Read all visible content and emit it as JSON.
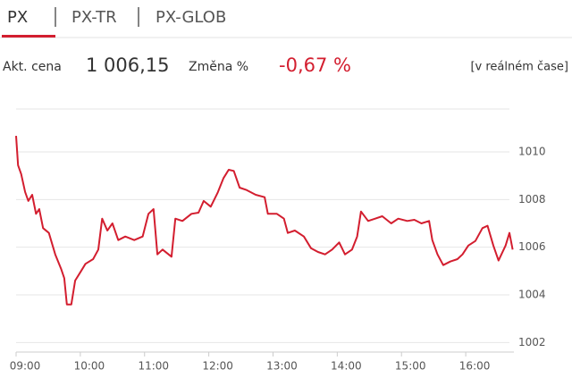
{
  "tabs": [
    "PX",
    "PX-TR",
    "PX-GLOB"
  ],
  "info": {
    "price_label": "Akt. cena",
    "price": "1 006,15",
    "change_label": "Změna %",
    "change": "-0,67 %",
    "mode": "[v reálném čase]"
  },
  "chart_data": {
    "type": "line",
    "color": "#d31e2f",
    "grid": true,
    "x": [
      9.0,
      9.03,
      9.08,
      9.14,
      9.19,
      9.25,
      9.31,
      9.36,
      9.42,
      9.51,
      9.61,
      9.7,
      9.75,
      9.79,
      9.86,
      9.92,
      10.0,
      10.08,
      10.2,
      10.28,
      10.34,
      10.42,
      10.5,
      10.59,
      10.7,
      10.84,
      10.97,
      11.06,
      11.14,
      11.2,
      11.28,
      11.42,
      11.48,
      11.59,
      11.73,
      11.84,
      11.92,
      12.03,
      12.14,
      12.23,
      12.31,
      12.39,
      12.48,
      12.59,
      12.73,
      12.87,
      12.92,
      13.06,
      13.17,
      13.23,
      13.34,
      13.48,
      13.59,
      13.7,
      13.81,
      13.92,
      14.03,
      14.12,
      14.23,
      14.31,
      14.37,
      14.48,
      14.59,
      14.7,
      14.84,
      14.95,
      15.09,
      15.2,
      15.31,
      15.43,
      15.48,
      15.56,
      15.65,
      15.76,
      15.87,
      15.95,
      16.04,
      16.15,
      16.26,
      16.34,
      16.43,
      16.51,
      16.62,
      16.68,
      16.73
    ],
    "values": [
      1010.67,
      1009.44,
      1009.07,
      1008.32,
      1007.94,
      1008.2,
      1007.4,
      1007.6,
      1006.8,
      1006.6,
      1005.7,
      1005.1,
      1004.7,
      1003.6,
      1003.6,
      1004.6,
      1004.95,
      1005.3,
      1005.5,
      1005.9,
      1007.2,
      1006.7,
      1007.0,
      1006.3,
      1006.45,
      1006.3,
      1006.45,
      1007.4,
      1007.6,
      1005.7,
      1005.9,
      1005.6,
      1007.2,
      1007.1,
      1007.4,
      1007.45,
      1007.94,
      1007.7,
      1008.3,
      1008.9,
      1009.25,
      1009.2,
      1008.5,
      1008.4,
      1008.2,
      1008.1,
      1007.4,
      1007.4,
      1007.2,
      1006.6,
      1006.7,
      1006.45,
      1005.96,
      1005.8,
      1005.7,
      1005.9,
      1006.2,
      1005.7,
      1005.9,
      1006.45,
      1007.5,
      1007.1,
      1007.2,
      1007.3,
      1007.0,
      1007.2,
      1007.1,
      1007.15,
      1007.0,
      1007.1,
      1006.3,
      1005.7,
      1005.25,
      1005.4,
      1005.5,
      1005.7,
      1006.07,
      1006.26,
      1006.8,
      1006.9,
      1006.07,
      1005.44,
      1006.07,
      1006.6,
      1005.9
    ],
    "xlim": [
      9,
      16.75
    ],
    "xticks": [
      {
        "value": 9,
        "label": "09:00"
      },
      {
        "value": 10,
        "label": "10:00"
      },
      {
        "value": 11,
        "label": "11:00"
      },
      {
        "value": 12,
        "label": "12:00"
      },
      {
        "value": 13,
        "label": "13:00"
      },
      {
        "value": 14,
        "label": "14:00"
      },
      {
        "value": 15,
        "label": "15:00"
      },
      {
        "value": 16,
        "label": "16:00"
      }
    ],
    "ylim": [
      1001.6,
      1011.8
    ],
    "yticks": [
      1002,
      1004,
      1006,
      1008,
      1010
    ]
  }
}
